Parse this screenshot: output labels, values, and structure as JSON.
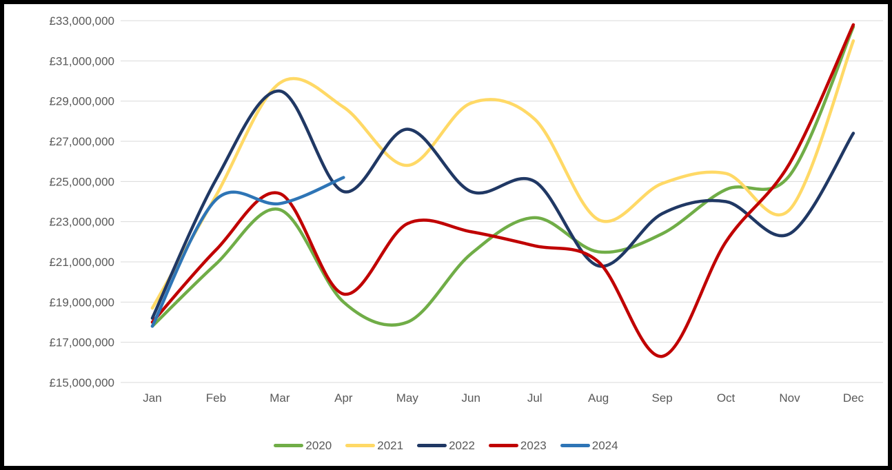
{
  "colors": {
    "background": "#FFFFFF",
    "frame_border": "#000000",
    "gridline": "#D9D9D9",
    "axis_text": "#595959"
  },
  "chart_data": {
    "type": "line",
    "title": "",
    "xlabel": "",
    "ylabel": "",
    "smoothed": true,
    "gridlines": true,
    "legend_position": "bottom",
    "categories": [
      "Jan",
      "Feb",
      "Mar",
      "Apr",
      "May",
      "Jun",
      "Jul",
      "Aug",
      "Sep",
      "Oct",
      "Nov",
      "Dec"
    ],
    "y_axis": {
      "min": 15000000,
      "max": 33000000,
      "step": 2000000,
      "tick_labels": [
        "£15,000,000",
        "£17,000,000",
        "£19,000,000",
        "£21,000,000",
        "£23,000,000",
        "£25,000,000",
        "£27,000,000",
        "£29,000,000",
        "£31,000,000",
        "£33,000,000"
      ]
    },
    "series": [
      {
        "name": "2020",
        "color": "#70AD47",
        "values": [
          17800000,
          20900000,
          23600000,
          19000000,
          18000000,
          21400000,
          23200000,
          21500000,
          22400000,
          24600000,
          25300000,
          32700000
        ]
      },
      {
        "name": "2021",
        "color": "#FFD966",
        "values": [
          18700000,
          24300000,
          29900000,
          28700000,
          25800000,
          28900000,
          28100000,
          23100000,
          24900000,
          25400000,
          23600000,
          32000000
        ]
      },
      {
        "name": "2022",
        "color": "#203864",
        "values": [
          18200000,
          25100000,
          29500000,
          24500000,
          27600000,
          24500000,
          25000000,
          20800000,
          23400000,
          24000000,
          22400000,
          27400000
        ]
      },
      {
        "name": "2023",
        "color": "#C00000",
        "values": [
          18000000,
          21600000,
          24400000,
          19400000,
          22900000,
          22500000,
          21800000,
          21000000,
          16300000,
          22000000,
          25900000,
          32800000
        ]
      },
      {
        "name": "2024",
        "color": "#2E75B6",
        "values": [
          17800000,
          24100000,
          23900000,
          25200000,
          null,
          null,
          null,
          null,
          null,
          null,
          null,
          null
        ]
      }
    ]
  }
}
